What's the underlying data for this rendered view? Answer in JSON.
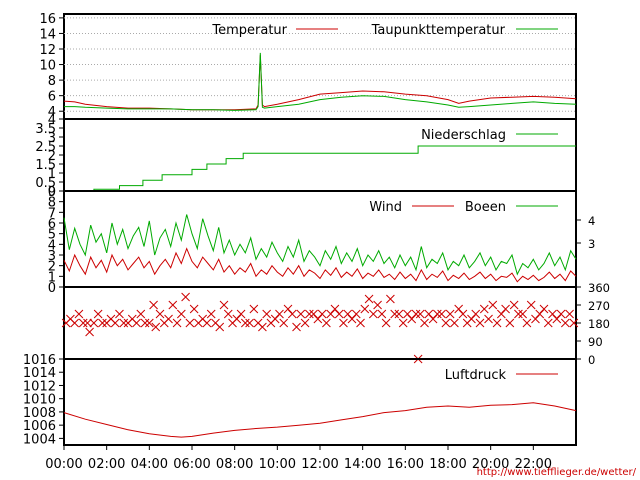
{
  "credit": "http://www.tiefflieger.de/wetter/",
  "colors": {
    "red": "#cc0000",
    "green": "#00aa00",
    "grid": "#aaaaaa",
    "frame": "#000000",
    "background": "#ffffff"
  },
  "x_axis": {
    "range_hours": [
      0,
      24
    ],
    "tick_labels": [
      "00:00",
      "02:00",
      "04:00",
      "06:00",
      "08:00",
      "10:00",
      "12:00",
      "14:00",
      "16:00",
      "18:00",
      "20:00",
      "22:00"
    ]
  },
  "chart_data": [
    {
      "type": "line",
      "panel": "temperature",
      "ylim": [
        3,
        16.5
      ],
      "y_ticks": [
        "4",
        "6",
        "8",
        "10",
        "12",
        "14",
        "16"
      ],
      "grid": true,
      "legend_position": "top-right",
      "series": [
        {
          "name": "Temperatur",
          "color": "red",
          "x": [
            0,
            0.5,
            1,
            2,
            3,
            4,
            5,
            6,
            7,
            8,
            9,
            9.1,
            9.2,
            9.3,
            9.4,
            10,
            11,
            12,
            13,
            14,
            15,
            16,
            17,
            18,
            18.5,
            19,
            20,
            21,
            22,
            23,
            24
          ],
          "values": [
            5.3,
            5.2,
            4.9,
            4.6,
            4.4,
            4.4,
            4.3,
            4.2,
            4.2,
            4.2,
            4.3,
            4.8,
            11.2,
            4.8,
            4.6,
            4.9,
            5.5,
            6.2,
            6.4,
            6.6,
            6.5,
            6.2,
            6.0,
            5.5,
            5.0,
            5.3,
            5.7,
            5.8,
            5.9,
            5.8,
            5.6
          ]
        },
        {
          "name": "Taupunkttemperatur",
          "color": "green",
          "x": [
            0,
            0.5,
            1,
            2,
            3,
            4,
            5,
            6,
            7,
            8,
            9,
            9.1,
            9.2,
            9.3,
            9.4,
            10,
            11,
            12,
            13,
            14,
            15,
            16,
            17,
            18,
            18.5,
            19,
            20,
            21,
            22,
            23,
            24
          ],
          "values": [
            4.6,
            4.6,
            4.5,
            4.4,
            4.3,
            4.3,
            4.3,
            4.2,
            4.2,
            4.1,
            4.2,
            4.6,
            11.5,
            4.5,
            4.4,
            4.6,
            4.9,
            5.5,
            5.8,
            6.0,
            5.9,
            5.5,
            5.2,
            4.8,
            4.5,
            4.6,
            4.8,
            5.0,
            5.2,
            5.0,
            4.9
          ]
        }
      ]
    },
    {
      "type": "line",
      "panel": "precipitation",
      "ylim": [
        0,
        4
      ],
      "y_ticks": [
        "0",
        "0.5",
        "1",
        "1.5",
        "2",
        "2.5",
        "3",
        "3.5",
        "4"
      ],
      "legend_position": "top-right",
      "series": [
        {
          "name": "Niederschlag",
          "color": "green",
          "step": true,
          "x": [
            0,
            1.2,
            1.4,
            2.6,
            3.7,
            4.6,
            6.0,
            6.7,
            7.6,
            8.4,
            16.6,
            24
          ],
          "values": [
            0,
            0,
            0.1,
            0.3,
            0.6,
            0.9,
            1.2,
            1.5,
            1.8,
            2.1,
            2.5,
            2.5
          ]
        }
      ]
    },
    {
      "type": "line",
      "panel": "wind",
      "ylim": [
        0,
        9
      ],
      "y_ticks": [
        "0",
        "1",
        "2",
        "3",
        "4",
        "5",
        "6",
        "7",
        "8",
        "9"
      ],
      "y2_ticks": [
        "3",
        "4"
      ],
      "legend_position": "top-right",
      "series": [
        {
          "name": "Wind",
          "color": "red",
          "x": [
            0,
            0.25,
            0.5,
            0.75,
            1,
            1.25,
            1.5,
            1.75,
            2,
            2.25,
            2.5,
            2.75,
            3,
            3.25,
            3.5,
            3.75,
            4,
            4.25,
            4.5,
            4.75,
            5,
            5.25,
            5.5,
            5.75,
            6,
            6.25,
            6.5,
            6.75,
            7,
            7.25,
            7.5,
            7.75,
            8,
            8.25,
            8.5,
            8.75,
            9,
            9.25,
            9.5,
            9.75,
            10,
            10.25,
            10.5,
            10.75,
            11,
            11.25,
            11.5,
            11.75,
            12,
            12.25,
            12.5,
            12.75,
            13,
            13.25,
            13.5,
            13.75,
            14,
            14.25,
            14.5,
            14.75,
            15,
            15.25,
            15.5,
            15.75,
            16,
            16.25,
            16.5,
            16.75,
            17,
            17.25,
            17.5,
            17.75,
            18,
            18.25,
            18.5,
            18.75,
            19,
            19.25,
            19.5,
            19.75,
            20,
            20.25,
            20.5,
            20.75,
            21,
            21.25,
            21.5,
            21.75,
            22,
            22.25,
            22.5,
            22.75,
            23,
            23.25,
            23.5,
            23.75,
            24
          ],
          "values": [
            2.5,
            1.5,
            3.0,
            2.0,
            1.2,
            2.8,
            1.8,
            2.5,
            1.4,
            3.0,
            2.0,
            2.6,
            1.6,
            2.2,
            2.8,
            1.8,
            2.4,
            1.2,
            2.0,
            2.6,
            1.8,
            3.2,
            2.2,
            3.6,
            2.4,
            1.8,
            2.8,
            2.2,
            1.6,
            2.6,
            1.4,
            2.0,
            1.2,
            1.8,
            1.4,
            2.2,
            1.0,
            1.6,
            1.2,
            2.0,
            1.4,
            1.0,
            1.8,
            1.2,
            2.0,
            1.0,
            1.6,
            1.3,
            0.8,
            1.6,
            1.1,
            1.8,
            0.9,
            1.4,
            1.0,
            1.7,
            0.8,
            1.3,
            1.0,
            1.6,
            0.9,
            1.2,
            0.7,
            1.4,
            0.8,
            1.2,
            0.6,
            1.6,
            0.7,
            1.2,
            0.9,
            1.5,
            0.6,
            1.1,
            0.8,
            1.3,
            0.7,
            1.0,
            1.4,
            0.8,
            1.2,
            0.6,
            1.0,
            0.9,
            1.3,
            0.5,
            1.0,
            0.7,
            1.1,
            0.6,
            0.9,
            1.4,
            0.8,
            1.2,
            0.6,
            1.5,
            1.0
          ]
        },
        {
          "name": "Boeen",
          "color": "green",
          "x": [
            0,
            0.25,
            0.5,
            0.75,
            1,
            1.25,
            1.5,
            1.75,
            2,
            2.25,
            2.5,
            2.75,
            3,
            3.25,
            3.5,
            3.75,
            4,
            4.25,
            4.5,
            4.75,
            5,
            5.25,
            5.5,
            5.75,
            6,
            6.25,
            6.5,
            6.75,
            7,
            7.25,
            7.5,
            7.75,
            8,
            8.25,
            8.5,
            8.75,
            9,
            9.25,
            9.5,
            9.75,
            10,
            10.25,
            10.5,
            10.75,
            11,
            11.25,
            11.5,
            11.75,
            12,
            12.25,
            12.5,
            12.75,
            13,
            13.25,
            13.5,
            13.75,
            14,
            14.25,
            14.5,
            14.75,
            15,
            15.25,
            15.5,
            15.75,
            16,
            16.25,
            16.5,
            16.75,
            17,
            17.25,
            17.5,
            17.75,
            18,
            18.25,
            18.5,
            18.75,
            19,
            19.25,
            19.5,
            19.75,
            20,
            20.25,
            20.5,
            20.75,
            21,
            21.25,
            21.5,
            21.75,
            22,
            22.25,
            22.5,
            22.75,
            23,
            23.25,
            23.5,
            23.75,
            24
          ],
          "values": [
            6.5,
            3.5,
            5.5,
            4.0,
            3.0,
            5.8,
            4.2,
            5.0,
            3.2,
            6.0,
            4.0,
            5.4,
            3.6,
            4.8,
            5.6,
            3.8,
            6.2,
            3.0,
            4.6,
            5.4,
            3.8,
            6.0,
            4.4,
            6.8,
            5.0,
            3.6,
            6.4,
            4.8,
            3.4,
            5.6,
            3.2,
            4.4,
            3.0,
            4.0,
            3.2,
            4.6,
            2.6,
            3.6,
            2.8,
            4.2,
            3.2,
            2.4,
            3.8,
            2.8,
            4.4,
            2.4,
            3.4,
            2.8,
            2.0,
            3.4,
            2.6,
            3.8,
            2.2,
            3.2,
            2.4,
            3.6,
            2.0,
            3.0,
            2.4,
            3.4,
            2.2,
            2.8,
            1.8,
            3.0,
            2.0,
            2.8,
            1.6,
            3.8,
            1.8,
            2.6,
            2.2,
            3.2,
            1.6,
            2.4,
            2.0,
            3.0,
            1.8,
            2.4,
            3.2,
            2.0,
            2.8,
            1.6,
            2.4,
            2.2,
            3.0,
            1.2,
            2.2,
            1.8,
            2.6,
            1.6,
            2.2,
            3.2,
            2.0,
            2.8,
            1.6,
            3.4,
            2.6
          ]
        }
      ]
    },
    {
      "type": "scatter",
      "panel": "wind_direction",
      "ylim": [
        0,
        360
      ],
      "y2_ticks": [
        "0",
        "90",
        "180",
        "270",
        "360"
      ],
      "marker": "x",
      "series": [
        {
          "color": "red",
          "x": [
            0.1,
            0.3,
            0.5,
            0.7,
            0.9,
            1.1,
            1.2,
            1.4,
            1.6,
            1.8,
            2.0,
            2.2,
            2.4,
            2.6,
            2.8,
            3.0,
            3.2,
            3.4,
            3.6,
            3.8,
            4.0,
            4.2,
            4.3,
            4.5,
            4.7,
            4.9,
            5.1,
            5.3,
            5.5,
            5.7,
            5.9,
            6.1,
            6.3,
            6.5,
            6.7,
            6.9,
            7.1,
            7.3,
            7.5,
            7.7,
            7.9,
            8.1,
            8.3,
            8.5,
            8.7,
            8.9,
            9.1,
            9.3,
            9.5,
            9.7,
            9.9,
            10.1,
            10.3,
            10.5,
            10.7,
            10.9,
            11.1,
            11.3,
            11.5,
            11.7,
            11.9,
            12.1,
            12.3,
            12.5,
            12.7,
            12.9,
            13.1,
            13.3,
            13.5,
            13.7,
            13.9,
            14.1,
            14.3,
            14.5,
            14.7,
            14.9,
            15.1,
            15.3,
            15.5,
            15.7,
            15.9,
            16.1,
            16.3,
            16.5,
            16.6,
            16.7,
            16.9,
            17.1,
            17.3,
            17.5,
            17.7,
            17.9,
            18.1,
            18.3,
            18.5,
            18.7,
            18.9,
            19.1,
            19.3,
            19.5,
            19.7,
            19.9,
            20.1,
            20.3,
            20.5,
            20.7,
            20.9,
            21.1,
            21.3,
            21.5,
            21.7,
            21.9,
            22.1,
            22.3,
            22.5,
            22.7,
            22.9,
            23.1,
            23.3,
            23.5,
            23.7,
            23.9
          ],
          "values": [
            180,
            200,
            180,
            225,
            180,
            180,
            135,
            180,
            225,
            180,
            180,
            200,
            180,
            225,
            180,
            180,
            200,
            180,
            225,
            180,
            180,
            270,
            160,
            225,
            180,
            200,
            270,
            180,
            225,
            310,
            180,
            250,
            180,
            200,
            180,
            225,
            180,
            160,
            270,
            225,
            180,
            200,
            225,
            180,
            180,
            250,
            180,
            160,
            225,
            180,
            200,
            225,
            180,
            250,
            225,
            160,
            225,
            180,
            225,
            225,
            200,
            225,
            180,
            225,
            250,
            225,
            180,
            225,
            200,
            225,
            180,
            250,
            300,
            225,
            270,
            225,
            180,
            300,
            225,
            225,
            180,
            225,
            200,
            225,
            0,
            225,
            180,
            225,
            200,
            225,
            225,
            180,
            225,
            180,
            250,
            225,
            180,
            200,
            225,
            180,
            250,
            200,
            270,
            180,
            225,
            250,
            180,
            270,
            225,
            225,
            180,
            270,
            200,
            225,
            250,
            180,
            225,
            200,
            225,
            180,
            225,
            180
          ]
        }
      ]
    },
    {
      "type": "line",
      "panel": "pressure",
      "ylim": [
        1003,
        1016
      ],
      "y_ticks": [
        "1004",
        "1006",
        "1008",
        "1010",
        "1012",
        "1014",
        "1016"
      ],
      "legend_position": "top-right",
      "series": [
        {
          "name": "Luftdruck",
          "color": "red",
          "x": [
            0,
            1,
            2,
            3,
            4,
            5,
            5.5,
            6,
            7,
            8,
            9,
            10,
            11,
            12,
            13,
            14,
            15,
            16,
            17,
            18,
            19,
            20,
            21,
            22,
            23,
            24
          ],
          "values": [
            1007.9,
            1006.9,
            1006.1,
            1005.3,
            1004.7,
            1004.3,
            1004.2,
            1004.3,
            1004.8,
            1005.2,
            1005.5,
            1005.7,
            1006.0,
            1006.3,
            1006.8,
            1007.3,
            1007.9,
            1008.2,
            1008.7,
            1008.9,
            1008.7,
            1009.0,
            1009.1,
            1009.4,
            1008.9,
            1008.2
          ]
        }
      ]
    }
  ]
}
